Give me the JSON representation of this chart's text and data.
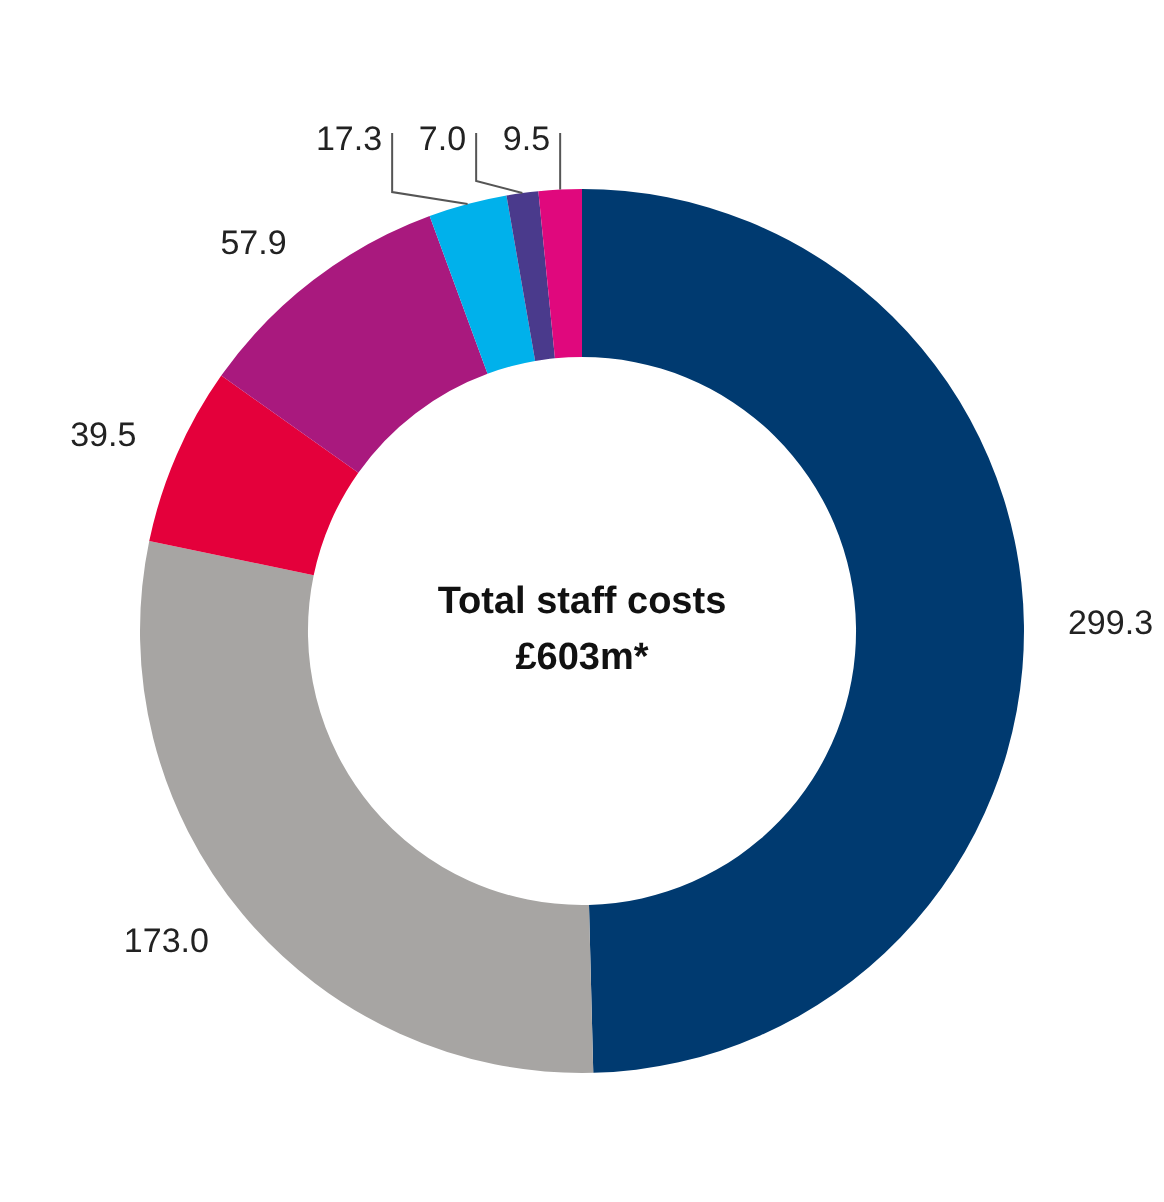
{
  "chart_data": {
    "type": "donut",
    "categories": [
      null,
      null,
      null,
      null,
      null,
      null,
      null
    ],
    "values": [
      299.3,
      173.0,
      39.5,
      57.9,
      17.3,
      7.0,
      9.5
    ],
    "colors": [
      "#003a70",
      "#a7a5a3",
      "#e4003b",
      "#a9197e",
      "#00b1eb",
      "#4a3a8c",
      "#e0087d"
    ],
    "value_labels": [
      "299.3",
      "173.0",
      "39.5",
      "57.9",
      "17.3",
      "7.0",
      "9.5"
    ],
    "legend": false,
    "annotations": [
      "Total staff costs",
      "£603m*"
    ]
  }
}
